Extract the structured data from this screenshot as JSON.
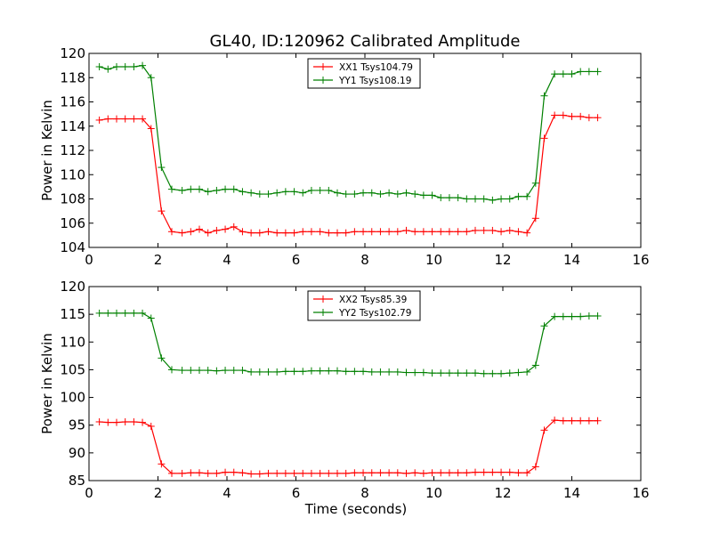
{
  "chart_data": [
    {
      "type": "line",
      "title": "GL40, ID:120962 Calibrated Amplitude",
      "xlabel": "",
      "ylabel": "Power in Kelvin",
      "xlim": [
        0,
        16
      ],
      "ylim": [
        104,
        120
      ],
      "xticks": [
        0,
        2,
        4,
        6,
        8,
        10,
        12,
        14,
        16
      ],
      "yticks": [
        104,
        106,
        108,
        110,
        112,
        114,
        116,
        118,
        120
      ],
      "legend_position": "top-center",
      "grid": false,
      "x": [
        0.3,
        0.55,
        0.8,
        1.05,
        1.3,
        1.55,
        1.8,
        2.1,
        2.4,
        2.7,
        2.95,
        3.2,
        3.45,
        3.7,
        3.95,
        4.2,
        4.45,
        4.7,
        4.95,
        5.2,
        5.45,
        5.7,
        5.95,
        6.2,
        6.45,
        6.7,
        6.95,
        7.2,
        7.45,
        7.7,
        7.95,
        8.2,
        8.45,
        8.7,
        8.95,
        9.2,
        9.45,
        9.7,
        9.95,
        10.2,
        10.45,
        10.7,
        10.95,
        11.2,
        11.45,
        11.7,
        11.95,
        12.2,
        12.45,
        12.7,
        12.95,
        13.2,
        13.5,
        13.75,
        14.0,
        14.25,
        14.5,
        14.75
      ],
      "series": [
        {
          "name": "XX1 Tsys104.79",
          "color": "#ff0000",
          "values": [
            114.5,
            114.6,
            114.6,
            114.6,
            114.6,
            114.6,
            113.8,
            107.0,
            105.3,
            105.2,
            105.3,
            105.5,
            105.2,
            105.4,
            105.5,
            105.7,
            105.3,
            105.2,
            105.2,
            105.3,
            105.2,
            105.2,
            105.2,
            105.3,
            105.3,
            105.3,
            105.2,
            105.2,
            105.2,
            105.3,
            105.3,
            105.3,
            105.3,
            105.3,
            105.3,
            105.4,
            105.3,
            105.3,
            105.3,
            105.3,
            105.3,
            105.3,
            105.3,
            105.4,
            105.4,
            105.4,
            105.3,
            105.4,
            105.3,
            105.2,
            106.4,
            113.0,
            114.9,
            114.9,
            114.8,
            114.8,
            114.7,
            114.7
          ]
        },
        {
          "name": "YY1 Tsys108.19",
          "color": "#008000",
          "values": [
            118.9,
            118.7,
            118.9,
            118.9,
            118.9,
            119.0,
            118.0,
            110.6,
            108.8,
            108.7,
            108.8,
            108.8,
            108.6,
            108.7,
            108.8,
            108.8,
            108.6,
            108.5,
            108.4,
            108.4,
            108.5,
            108.6,
            108.6,
            108.5,
            108.7,
            108.7,
            108.7,
            108.5,
            108.4,
            108.4,
            108.5,
            108.5,
            108.4,
            108.5,
            108.4,
            108.5,
            108.4,
            108.3,
            108.3,
            108.1,
            108.1,
            108.1,
            108.0,
            108.0,
            108.0,
            107.9,
            108.0,
            108.0,
            108.2,
            108.2,
            109.3,
            116.5,
            118.3,
            118.3,
            118.3,
            118.5,
            118.5,
            118.5
          ]
        }
      ]
    },
    {
      "type": "line",
      "title": "",
      "xlabel": "Time (seconds)",
      "ylabel": "Power in Kelvin",
      "xlim": [
        0,
        16
      ],
      "ylim": [
        85,
        120
      ],
      "xticks": [
        0,
        2,
        4,
        6,
        8,
        10,
        12,
        14,
        16
      ],
      "yticks": [
        85,
        90,
        95,
        100,
        105,
        110,
        115,
        120
      ],
      "legend_position": "top-center",
      "grid": false,
      "x": [
        0.3,
        0.55,
        0.8,
        1.05,
        1.3,
        1.55,
        1.8,
        2.1,
        2.4,
        2.7,
        2.95,
        3.2,
        3.45,
        3.7,
        3.95,
        4.2,
        4.45,
        4.7,
        4.95,
        5.2,
        5.45,
        5.7,
        5.95,
        6.2,
        6.45,
        6.7,
        6.95,
        7.2,
        7.45,
        7.7,
        7.95,
        8.2,
        8.45,
        8.7,
        8.95,
        9.2,
        9.45,
        9.7,
        9.95,
        10.2,
        10.45,
        10.7,
        10.95,
        11.2,
        11.45,
        11.7,
        11.95,
        12.2,
        12.45,
        12.7,
        12.95,
        13.2,
        13.5,
        13.75,
        14.0,
        14.25,
        14.5,
        14.75
      ],
      "series": [
        {
          "name": "XX2 Tsys85.39",
          "color": "#ff0000",
          "values": [
            95.6,
            95.5,
            95.5,
            95.6,
            95.6,
            95.5,
            94.8,
            88.0,
            86.3,
            86.3,
            86.4,
            86.4,
            86.3,
            86.3,
            86.5,
            86.5,
            86.4,
            86.2,
            86.2,
            86.3,
            86.3,
            86.3,
            86.3,
            86.3,
            86.3,
            86.3,
            86.3,
            86.3,
            86.3,
            86.4,
            86.4,
            86.4,
            86.4,
            86.4,
            86.4,
            86.3,
            86.4,
            86.3,
            86.4,
            86.4,
            86.4,
            86.4,
            86.4,
            86.5,
            86.5,
            86.5,
            86.5,
            86.5,
            86.4,
            86.4,
            87.5,
            94.1,
            95.9,
            95.8,
            95.8,
            95.8,
            95.8,
            95.8
          ]
        },
        {
          "name": "YY2 Tsys102.79",
          "color": "#008000",
          "values": [
            115.2,
            115.2,
            115.2,
            115.2,
            115.2,
            115.2,
            114.3,
            107.1,
            105.0,
            104.9,
            104.9,
            104.9,
            104.9,
            104.8,
            104.9,
            104.9,
            104.9,
            104.6,
            104.6,
            104.6,
            104.6,
            104.7,
            104.7,
            104.7,
            104.8,
            104.8,
            104.8,
            104.8,
            104.7,
            104.7,
            104.7,
            104.6,
            104.6,
            104.6,
            104.6,
            104.5,
            104.5,
            104.5,
            104.4,
            104.4,
            104.4,
            104.4,
            104.4,
            104.4,
            104.3,
            104.3,
            104.3,
            104.4,
            104.5,
            104.6,
            105.8,
            112.9,
            114.6,
            114.6,
            114.6,
            114.6,
            114.7,
            114.7
          ]
        }
      ]
    }
  ]
}
